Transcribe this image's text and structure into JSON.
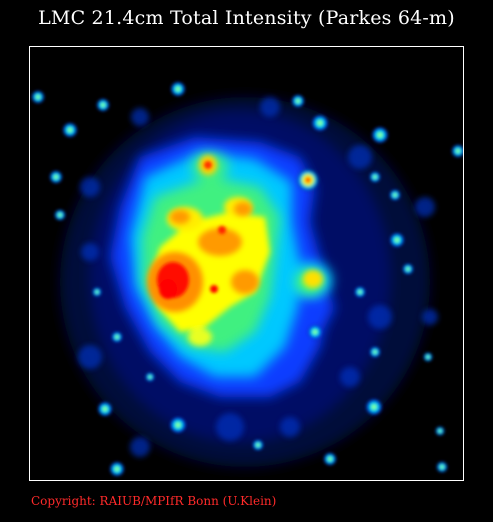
{
  "title": "LMC 21.4cm Total Intensity (Parkes 64-m)",
  "copyright": "Copyright: RAIUB/MPIfR Bonn (U.Klein)",
  "colors": {
    "background": "#000000",
    "frame": "#ffffff",
    "copyright": "#ff2a2a",
    "colormap": [
      "#000033",
      "#0a1a8c",
      "#0040ff",
      "#00a0ff",
      "#00e0c0",
      "#60ff40",
      "#ffff00",
      "#ffa000",
      "#ff3000",
      "#ff0000"
    ]
  }
}
